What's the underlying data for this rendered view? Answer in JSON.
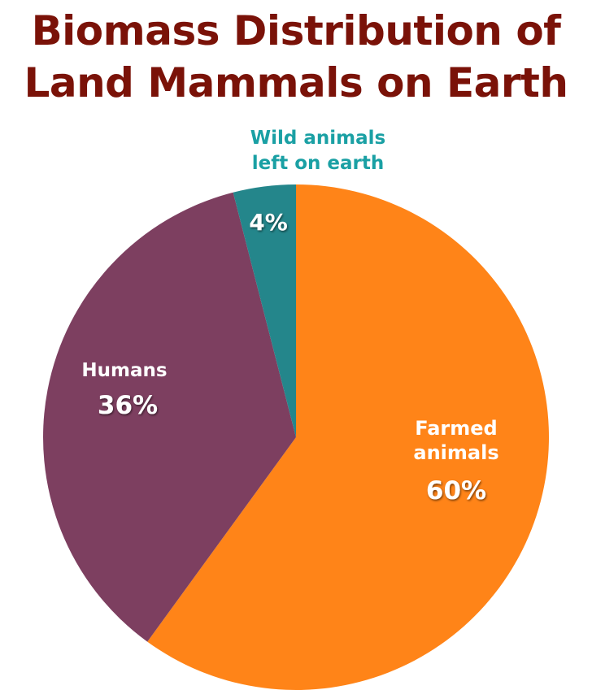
{
  "chart_data": {
    "type": "pie",
    "title_lines": [
      "Biomass Distribution of",
      "Land Mammals on Earth"
    ],
    "slices": [
      {
        "key": "farmed",
        "label_lines": [
          "Farmed",
          "animals"
        ],
        "value": 60,
        "value_label": "60%",
        "color": "#ff8418"
      },
      {
        "key": "humans",
        "label_lines": [
          "Humans"
        ],
        "value": 36,
        "value_label": "36%",
        "color": "#7d3f60"
      },
      {
        "key": "wild",
        "label_lines": [
          "Wild animals",
          "left on earth"
        ],
        "value": 4,
        "value_label": "4%",
        "color": "#24868b"
      }
    ],
    "start_angle": "top",
    "direction": "clockwise",
    "title_color": "#7a1208",
    "wild_label_color": "#1aa0a4"
  }
}
